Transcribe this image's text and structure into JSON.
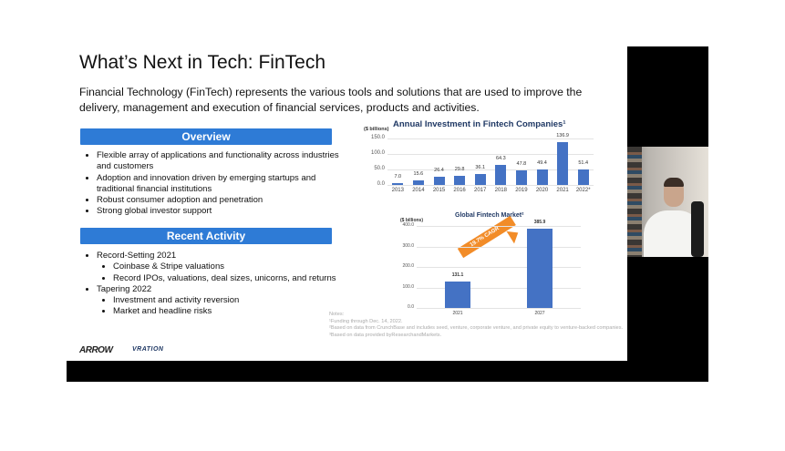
{
  "slide": {
    "title": "What’s Next in Tech: FinTech",
    "intro": "Financial Technology (FinTech) represents the various tools and solutions that are used to improve the delivery, management and execution of financial services, products and activities.",
    "overview": {
      "header": "Overview",
      "items": [
        "Flexible array of applications and functionality across industries and customers",
        "Adoption and innovation driven by emerging startups and traditional financial institutions",
        "Robust consumer adoption and penetration",
        "Strong global investor support"
      ]
    },
    "recent": {
      "header": "Recent Activity",
      "items": [
        {
          "label": "Record-Setting 2021",
          "sub": [
            "Coinbase & Stripe valuations",
            "Record IPOs, valuations, deal sizes, unicorns, and returns"
          ]
        },
        {
          "label": "Tapering 2022",
          "sub": [
            "Investment and activity reversion",
            "Market and headline risks"
          ]
        }
      ]
    },
    "notes": [
      "Notes:",
      "¹Funding through Dec. 14, 2022.",
      "²Based on data from CrunchBase and includes seed, venture, corporate venture, and private equity to venture-backed companies.",
      "³Based on data provided byResearchandMarkets."
    ],
    "logos": {
      "arrow": "ARROW",
      "vration": "VRATION"
    }
  },
  "chart_data": [
    {
      "type": "bar",
      "title": "Annual Investment in Fintech Companies¹",
      "ylabel": "($ billions)",
      "categories": [
        "2013",
        "2014",
        "2015",
        "2016",
        "2017",
        "2018",
        "2019",
        "2020",
        "2021",
        "2022*"
      ],
      "values": [
        7.0,
        15.6,
        26.4,
        29.8,
        36.1,
        64.3,
        47.8,
        49.4,
        136.9,
        51.4
      ],
      "value_labels": [
        "7.0",
        "15.6",
        "26.4",
        "29.8",
        "36.1",
        "64.3",
        "47.8",
        "49.4",
        "136.9",
        "51.4"
      ],
      "yticks": [
        "150.0",
        "100.0",
        "50.0",
        "0.0"
      ],
      "ylim": [
        0,
        150
      ],
      "color": "#4472c4",
      "grid": true
    },
    {
      "type": "bar",
      "title": "Global Fintech Market²",
      "ylabel": "($ billions)",
      "categories": [
        "2021",
        "2027"
      ],
      "values": [
        131.1,
        385.9
      ],
      "value_labels": [
        "131.1",
        "385.9"
      ],
      "yticks": [
        "400.0",
        "300.0",
        "200.0",
        "100.0",
        "0.0"
      ],
      "ylim": [
        0,
        400
      ],
      "annotation": "19.7% CAGR",
      "color": "#4472c4",
      "annotation_color": "#f28c28",
      "grid": true
    }
  ]
}
